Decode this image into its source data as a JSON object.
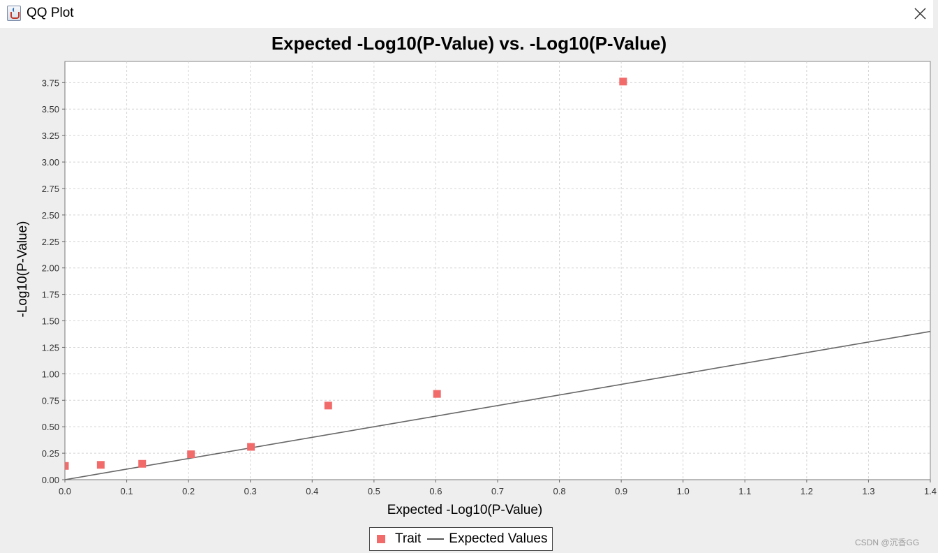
{
  "window": {
    "title": "QQ Plot",
    "close_icon": "close-icon",
    "app_icon": "java-cup-icon"
  },
  "watermark": "CSDN @沉香GG",
  "chart_data": {
    "type": "scatter",
    "title": "Expected -Log10(P-Value) vs. -Log10(P-Value)",
    "xlabel": "Expected -Log10(P-Value)",
    "ylabel": "-Log10(P-Value)",
    "xlim": [
      0,
      1.4
    ],
    "ylim": [
      0,
      3.95
    ],
    "xticks": [
      "0.0",
      "0.1",
      "0.2",
      "0.3",
      "0.4",
      "0.5",
      "0.6",
      "0.7",
      "0.8",
      "0.9",
      "1.0",
      "1.1",
      "1.2",
      "1.3",
      "1.4"
    ],
    "yticks": [
      "0.00",
      "0.25",
      "0.50",
      "0.75",
      "1.00",
      "1.25",
      "1.50",
      "1.75",
      "2.00",
      "2.25",
      "2.50",
      "2.75",
      "3.00",
      "3.25",
      "3.50",
      "3.75"
    ],
    "grid": true,
    "legend_position": "bottom",
    "series": [
      {
        "name": "Trait",
        "color": "#f26b6b",
        "marker": "square",
        "points": [
          {
            "x": 0.0,
            "y": 0.13
          },
          {
            "x": 0.058,
            "y": 0.14
          },
          {
            "x": 0.125,
            "y": 0.15
          },
          {
            "x": 0.204,
            "y": 0.24
          },
          {
            "x": 0.301,
            "y": 0.31
          },
          {
            "x": 0.426,
            "y": 0.7
          },
          {
            "x": 0.602,
            "y": 0.81
          },
          {
            "x": 0.903,
            "y": 3.76
          }
        ]
      },
      {
        "name": "Expected Values",
        "color": "#666666",
        "marker": "line",
        "points": [
          {
            "x": 0.0,
            "y": 0.0
          },
          {
            "x": 1.4,
            "y": 1.4
          }
        ]
      }
    ]
  }
}
